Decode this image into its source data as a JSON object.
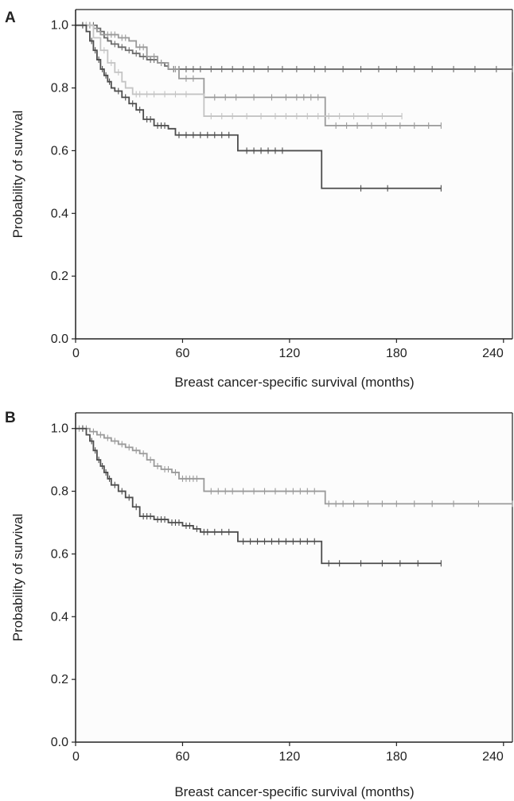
{
  "chart_data": [
    {
      "panel_label": "A",
      "type": "line",
      "title": "",
      "xlabel": "Breast cancer-specific survival (months)",
      "ylabel": "Probability of survival",
      "xlim": [
        0,
        245
      ],
      "ylim": [
        0,
        1.05
      ],
      "x_ticks": [
        "0",
        "60",
        "120",
        "180",
        "240"
      ],
      "y_ticks": [
        "0.0",
        "0.2",
        "0.4",
        "0.6",
        "0.8",
        "1.0"
      ],
      "grid": false,
      "step": true,
      "series": [
        {
          "color": "#6b6b6b",
          "points": [
            [
              0,
              1.0
            ],
            [
              12,
              0.99
            ],
            [
              14,
              0.98
            ],
            [
              16,
              0.96
            ],
            [
              18,
              0.95
            ],
            [
              20,
              0.94
            ],
            [
              24,
              0.93
            ],
            [
              28,
              0.92
            ],
            [
              32,
              0.91
            ],
            [
              36,
              0.9
            ],
            [
              40,
              0.89
            ],
            [
              46,
              0.88
            ],
            [
              50,
              0.87
            ],
            [
              52,
              0.86
            ],
            [
              245,
              0.86
            ]
          ],
          "censor_x": [
            4,
            6,
            8,
            10,
            22,
            26,
            30,
            34,
            38,
            42,
            44,
            48,
            55,
            58,
            62,
            66,
            70,
            76,
            82,
            88,
            94,
            100,
            108,
            116,
            124,
            134,
            140,
            150,
            160,
            170,
            180,
            190,
            200,
            212,
            224,
            236,
            245
          ]
        },
        {
          "color": "#9a9a9a",
          "points": [
            [
              0,
              1.0
            ],
            [
              10,
              0.99
            ],
            [
              12,
              0.98
            ],
            [
              14,
              0.97
            ],
            [
              24,
              0.96
            ],
            [
              30,
              0.95
            ],
            [
              34,
              0.93
            ],
            [
              40,
              0.9
            ],
            [
              46,
              0.88
            ],
            [
              52,
              0.86
            ],
            [
              58,
              0.83
            ],
            [
              70,
              0.83
            ],
            [
              72,
              0.77
            ],
            [
              138,
              0.77
            ],
            [
              140,
              0.68
            ],
            [
              205,
              0.68
            ]
          ],
          "censor_x": [
            6,
            8,
            18,
            20,
            22,
            26,
            28,
            36,
            38,
            44,
            48,
            56,
            62,
            66,
            78,
            84,
            90,
            100,
            110,
            118,
            124,
            128,
            132,
            136,
            146,
            152,
            158,
            166,
            174,
            182,
            190,
            198,
            205
          ]
        },
        {
          "color": "#c4c4c4",
          "points": [
            [
              0,
              1.0
            ],
            [
              10,
              0.96
            ],
            [
              14,
              0.92
            ],
            [
              18,
              0.88
            ],
            [
              22,
              0.85
            ],
            [
              26,
              0.82
            ],
            [
              28,
              0.8
            ],
            [
              32,
              0.78
            ],
            [
              70,
              0.78
            ],
            [
              72,
              0.71
            ],
            [
              183,
              0.71
            ]
          ],
          "censor_x": [
            4,
            6,
            16,
            20,
            24,
            34,
            36,
            40,
            44,
            50,
            56,
            62,
            76,
            82,
            88,
            96,
            104,
            112,
            118,
            124,
            130,
            136,
            142,
            148,
            156,
            164,
            172,
            183
          ]
        },
        {
          "color": "#4d4d4d",
          "points": [
            [
              0,
              1.0
            ],
            [
              6,
              0.98
            ],
            [
              8,
              0.95
            ],
            [
              10,
              0.92
            ],
            [
              12,
              0.89
            ],
            [
              14,
              0.86
            ],
            [
              16,
              0.84
            ],
            [
              18,
              0.82
            ],
            [
              20,
              0.8
            ],
            [
              22,
              0.79
            ],
            [
              26,
              0.77
            ],
            [
              30,
              0.75
            ],
            [
              34,
              0.73
            ],
            [
              38,
              0.7
            ],
            [
              44,
              0.68
            ],
            [
              52,
              0.67
            ],
            [
              56,
              0.65
            ],
            [
              90,
              0.65
            ],
            [
              91,
              0.6
            ],
            [
              136,
              0.6
            ],
            [
              138,
              0.48
            ],
            [
              205,
              0.48
            ]
          ],
          "censor_x": [
            4,
            9,
            11,
            13,
            15,
            17,
            19,
            24,
            28,
            32,
            36,
            40,
            42,
            46,
            48,
            50,
            58,
            62,
            66,
            70,
            74,
            78,
            82,
            86,
            96,
            100,
            104,
            108,
            112,
            116,
            160,
            175,
            205
          ]
        }
      ]
    },
    {
      "panel_label": "B",
      "type": "line",
      "title": "",
      "xlabel": "Breast cancer-specific survival (months)",
      "ylabel": "Probability of survival",
      "xlim": [
        0,
        245
      ],
      "ylim": [
        0,
        1.05
      ],
      "x_ticks": [
        "0",
        "60",
        "120",
        "180",
        "240"
      ],
      "y_ticks": [
        "0.0",
        "0.2",
        "0.4",
        "0.6",
        "0.8",
        "1.0"
      ],
      "grid": false,
      "step": true,
      "series": [
        {
          "color": "#9a9a9a",
          "points": [
            [
              0,
              1.0
            ],
            [
              8,
              0.99
            ],
            [
              12,
              0.98
            ],
            [
              16,
              0.97
            ],
            [
              20,
              0.96
            ],
            [
              24,
              0.95
            ],
            [
              28,
              0.94
            ],
            [
              32,
              0.93
            ],
            [
              36,
              0.92
            ],
            [
              40,
              0.9
            ],
            [
              44,
              0.88
            ],
            [
              48,
              0.87
            ],
            [
              54,
              0.86
            ],
            [
              58,
              0.84
            ],
            [
              70,
              0.84
            ],
            [
              72,
              0.8
            ],
            [
              138,
              0.8
            ],
            [
              140,
              0.76
            ],
            [
              245,
              0.76
            ]
          ],
          "censor_x": [
            2,
            4,
            6,
            10,
            14,
            18,
            22,
            26,
            30,
            34,
            38,
            42,
            46,
            50,
            52,
            56,
            60,
            62,
            64,
            66,
            68,
            76,
            80,
            84,
            88,
            94,
            100,
            106,
            112,
            118,
            122,
            126,
            130,
            134,
            142,
            146,
            150,
            156,
            164,
            172,
            180,
            190,
            200,
            212,
            226,
            245
          ]
        },
        {
          "color": "#4d4d4d",
          "points": [
            [
              0,
              1.0
            ],
            [
              6,
              0.98
            ],
            [
              8,
              0.96
            ],
            [
              10,
              0.93
            ],
            [
              12,
              0.9
            ],
            [
              14,
              0.88
            ],
            [
              16,
              0.86
            ],
            [
              18,
              0.84
            ],
            [
              20,
              0.82
            ],
            [
              24,
              0.8
            ],
            [
              28,
              0.78
            ],
            [
              32,
              0.75
            ],
            [
              36,
              0.72
            ],
            [
              44,
              0.71
            ],
            [
              52,
              0.7
            ],
            [
              60,
              0.69
            ],
            [
              66,
              0.68
            ],
            [
              70,
              0.67
            ],
            [
              90,
              0.67
            ],
            [
              91,
              0.64
            ],
            [
              136,
              0.64
            ],
            [
              138,
              0.57
            ],
            [
              205,
              0.57
            ]
          ],
          "censor_x": [
            4,
            9,
            11,
            13,
            15,
            17,
            19,
            22,
            26,
            30,
            34,
            38,
            40,
            42,
            46,
            48,
            50,
            54,
            56,
            58,
            62,
            64,
            68,
            72,
            74,
            78,
            82,
            86,
            94,
            98,
            102,
            106,
            110,
            114,
            118,
            122,
            126,
            130,
            134,
            142,
            148,
            160,
            172,
            182,
            192,
            205
          ]
        }
      ]
    }
  ]
}
